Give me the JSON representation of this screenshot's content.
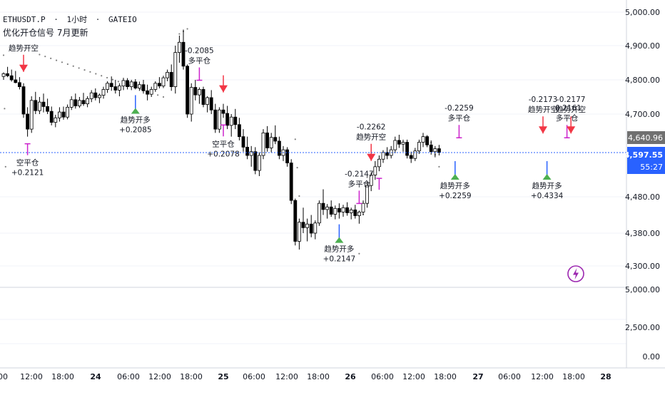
{
  "header": {
    "symbol": "ETHUSDT.P",
    "interval": "1小时",
    "exchange": "GATEIO",
    "separator": "·",
    "indicator_name": "优化开仓信号 7月更新"
  },
  "colors": {
    "bull_candle": "#ffffff",
    "bear_candle": "#000000",
    "candle_outline": "#000000",
    "short_open": "#f23645",
    "close_marker": "#cc22cc",
    "long_open_arrow": "#2962ff",
    "long_open_flag": "#4caf50",
    "trail_dots": "#808080",
    "last_price_line": "#2962ff",
    "last_price_bg": "#2962ff",
    "prev_price_bg": "#707070",
    "alert_icon": "#9c27b0"
  },
  "icons": {
    "alert": "lightning-alert-icon"
  },
  "price_axis": {
    "ticks": [
      "5,000.00",
      "4,900.00",
      "4,800.00",
      "4,700.00",
      "4,480.00",
      "4,380.00",
      "4,300.00"
    ],
    "tick_values": [
      5000,
      4900,
      4800,
      4700,
      4480,
      4380,
      4300
    ],
    "last_price": "4,597.55",
    "prev_price": "4,640.96",
    "countdown": "55:27"
  },
  "sub_axis": {
    "ticks": [
      "5,000.00",
      "2,500.00",
      "0.00"
    ]
  },
  "time_axis": {
    "labels": [
      "00",
      "12:00",
      "18:00",
      "24",
      "06:00",
      "12:00",
      "18:00",
      "25",
      "06:00",
      "12:00",
      "18:00",
      "26",
      "06:00",
      "12:00",
      "18:00",
      "27",
      "06:00",
      "12:00",
      "18:00",
      "28"
    ],
    "bold_labels": [
      "24",
      "25",
      "26",
      "27",
      "28"
    ]
  },
  "chart_data": {
    "type": "candlestick",
    "title": "",
    "y_range": [
      4240,
      5035
    ],
    "grid": true,
    "candles": [
      [
        4810,
        4822,
        4800,
        4818
      ],
      [
        4818,
        4838,
        4808,
        4812
      ],
      [
        4812,
        4830,
        4795,
        4800
      ],
      [
        4800,
        4826,
        4790,
        4792
      ],
      [
        4792,
        4808,
        4772,
        4780
      ],
      [
        4780,
        4790,
        4690,
        4700
      ],
      [
        4700,
        4720,
        4640,
        4660
      ],
      [
        4660,
        4752,
        4650,
        4740
      ],
      [
        4740,
        4765,
        4700,
        4710
      ],
      [
        4710,
        4750,
        4700,
        4735
      ],
      [
        4735,
        4760,
        4705,
        4722
      ],
      [
        4722,
        4745,
        4700,
        4708
      ],
      [
        4708,
        4722,
        4670,
        4678
      ],
      [
        4678,
        4698,
        4665,
        4690
      ],
      [
        4690,
        4720,
        4680,
        4706
      ],
      [
        4706,
        4722,
        4685,
        4692
      ],
      [
        4692,
        4728,
        4686,
        4720
      ],
      [
        4720,
        4752,
        4712,
        4742
      ],
      [
        4742,
        4760,
        4716,
        4724
      ],
      [
        4724,
        4750,
        4718,
        4740
      ],
      [
        4740,
        4762,
        4724,
        4730
      ],
      [
        4730,
        4752,
        4720,
        4745
      ],
      [
        4745,
        4770,
        4735,
        4762
      ],
      [
        4762,
        4775,
        4740,
        4748
      ],
      [
        4748,
        4760,
        4732,
        4755
      ],
      [
        4755,
        4780,
        4745,
        4772
      ],
      [
        4772,
        4796,
        4762,
        4790
      ],
      [
        4790,
        4810,
        4768,
        4780
      ],
      [
        4780,
        4800,
        4760,
        4770
      ],
      [
        4770,
        4790,
        4752,
        4782
      ],
      [
        4782,
        4806,
        4770,
        4798
      ],
      [
        4798,
        4805,
        4772,
        4780
      ],
      [
        4780,
        4800,
        4770,
        4794
      ],
      [
        4794,
        4802,
        4772,
        4776
      ],
      [
        4776,
        4795,
        4768,
        4786
      ],
      [
        4786,
        4800,
        4760,
        4768
      ],
      [
        4768,
        4786,
        4740,
        4758
      ],
      [
        4758,
        4780,
        4750,
        4772
      ],
      [
        4772,
        4796,
        4765,
        4790
      ],
      [
        4790,
        4808,
        4775,
        4782
      ],
      [
        4782,
        4812,
        4776,
        4806
      ],
      [
        4806,
        4830,
        4796,
        4822
      ],
      [
        4822,
        4845,
        4768,
        4780
      ],
      [
        4780,
        4900,
        4760,
        4880
      ],
      [
        4880,
        4930,
        4850,
        4910
      ],
      [
        4910,
        4948,
        4830,
        4840
      ],
      [
        4840,
        4845,
        4690,
        4700
      ],
      [
        4700,
        4790,
        4680,
        4778
      ],
      [
        4778,
        4800,
        4740,
        4756
      ],
      [
        4756,
        4778,
        4730,
        4772
      ],
      [
        4772,
        4780,
        4720,
        4728
      ],
      [
        4728,
        4752,
        4705,
        4748
      ],
      [
        4748,
        4770,
        4700,
        4712
      ],
      [
        4712,
        4730,
        4650,
        4660
      ],
      [
        4660,
        4720,
        4650,
        4712
      ],
      [
        4712,
        4730,
        4690,
        4702
      ],
      [
        4702,
        4724,
        4660,
        4670
      ],
      [
        4670,
        4700,
        4640,
        4692
      ],
      [
        4692,
        4715,
        4660,
        4672
      ],
      [
        4672,
        4690,
        4630,
        4640
      ],
      [
        4640,
        4660,
        4600,
        4612
      ],
      [
        4612,
        4640,
        4580,
        4590
      ],
      [
        4590,
        4615,
        4560,
        4600
      ],
      [
        4600,
        4612,
        4540,
        4550
      ],
      [
        4550,
        4598,
        4535,
        4590
      ],
      [
        4590,
        4660,
        4580,
        4650
      ],
      [
        4650,
        4668,
        4600,
        4610
      ],
      [
        4610,
        4650,
        4598,
        4638
      ],
      [
        4638,
        4670,
        4620,
        4628
      ],
      [
        4628,
        4640,
        4580,
        4590
      ],
      [
        4590,
        4615,
        4575,
        4605
      ],
      [
        4605,
        4612,
        4560,
        4570
      ],
      [
        4570,
        4580,
        4460,
        4470
      ],
      [
        4470,
        4475,
        4350,
        4360
      ],
      [
        4360,
        4420,
        4340,
        4410
      ],
      [
        4410,
        4450,
        4380,
        4395
      ],
      [
        4395,
        4420,
        4360,
        4405
      ],
      [
        4405,
        4430,
        4370,
        4380
      ],
      [
        4380,
        4415,
        4365,
        4408
      ],
      [
        4408,
        4470,
        4400,
        4462
      ],
      [
        4462,
        4500,
        4430,
        4445
      ],
      [
        4445,
        4460,
        4420,
        4452
      ],
      [
        4452,
        4470,
        4425,
        4432
      ],
      [
        4432,
        4456,
        4418,
        4448
      ],
      [
        4448,
        4462,
        4420,
        4438
      ],
      [
        4438,
        4458,
        4425,
        4450
      ],
      [
        4450,
        4465,
        4428,
        4436
      ],
      [
        4436,
        4450,
        4418,
        4444
      ],
      [
        4444,
        4458,
        4420,
        4428
      ],
      [
        4428,
        4442,
        4406,
        4438
      ],
      [
        4438,
        4470,
        4430,
        4462
      ],
      [
        4462,
        4520,
        4450,
        4510
      ],
      [
        4510,
        4545,
        4495,
        4538
      ],
      [
        4538,
        4575,
        4525,
        4560
      ],
      [
        4560,
        4590,
        4548,
        4580
      ],
      [
        4580,
        4604,
        4570,
        4598
      ],
      [
        4598,
        4612,
        4580,
        4590
      ],
      [
        4590,
        4615,
        4582,
        4605
      ],
      [
        4605,
        4640,
        4596,
        4630
      ],
      [
        4630,
        4645,
        4610,
        4620
      ],
      [
        4620,
        4632,
        4600,
        4625
      ],
      [
        4625,
        4632,
        4582,
        4590
      ],
      [
        4590,
        4600,
        4570,
        4582
      ],
      [
        4582,
        4610,
        4575,
        4602
      ],
      [
        4602,
        4632,
        4594,
        4625
      ],
      [
        4625,
        4650,
        4612,
        4640
      ],
      [
        4640,
        4644,
        4612,
        4618
      ],
      [
        4618,
        4630,
        4592,
        4600
      ],
      [
        4600,
        4615,
        4585,
        4608
      ],
      [
        4608,
        4618,
        4590,
        4598
      ]
    ],
    "trail_dots": {
      "values": [
        [
          0,
          4872
        ],
        [
          0.5,
          4560
        ],
        [
          9,
          4874
        ],
        [
          40,
          4750
        ],
        [
          44,
          4935
        ],
        [
          46,
          4950
        ],
        [
          73,
          4633
        ],
        [
          74,
          4482
        ],
        [
          89,
          4330
        ],
        [
          91,
          4532
        ],
        [
          107,
          4624
        ],
        [
          109,
          4560
        ]
      ]
    },
    "annotations": [
      {
        "type": "short_open",
        "bar": 5,
        "label": "趋势开空",
        "value": ""
      },
      {
        "type": "close_short",
        "bar": 6,
        "label": "空平仓",
        "value": "+0.2121"
      },
      {
        "type": "long_open",
        "bar": 33,
        "label": "趋势开多",
        "value": "+0.2085"
      },
      {
        "type": "close_long",
        "bar": 49,
        "label": "多平仓",
        "value": "-0.2085"
      },
      {
        "type": "short_open",
        "bar": 55,
        "label": "",
        "value": ""
      },
      {
        "type": "close_short",
        "bar": 55,
        "label": "空平仓",
        "value": "+0.2078"
      },
      {
        "type": "long_open",
        "bar": 84,
        "label": "趋势开多",
        "value": "+0.2147"
      },
      {
        "type": "close_long",
        "bar": 89,
        "label": "多平仓",
        "value": "-0.2147"
      },
      {
        "type": "short_open",
        "bar": 92,
        "label": "趋势开空",
        "value": "-0.2262"
      },
      {
        "type": "close_short",
        "bar": 94,
        "label": "",
        "value": ""
      },
      {
        "type": "long_open",
        "bar": 113,
        "label": "趋势开多",
        "value": "+0.2259"
      },
      {
        "type": "close_long",
        "bar": 114,
        "label": "多平仓",
        "value": "-0.2259"
      },
      {
        "type": "long_open",
        "bar": 136,
        "label": "趋势开多",
        "value": "+0.4334"
      },
      {
        "type": "short_open",
        "bar": 135,
        "label": "趋势开空",
        "value": "-0.2173"
      },
      {
        "type": "close_long",
        "bar": 141,
        "label": "多平仓",
        "value": "-0.2161"
      },
      {
        "type": "short_open",
        "bar": 142,
        "label": "趋势开空",
        "value": "-0.2177"
      }
    ]
  }
}
